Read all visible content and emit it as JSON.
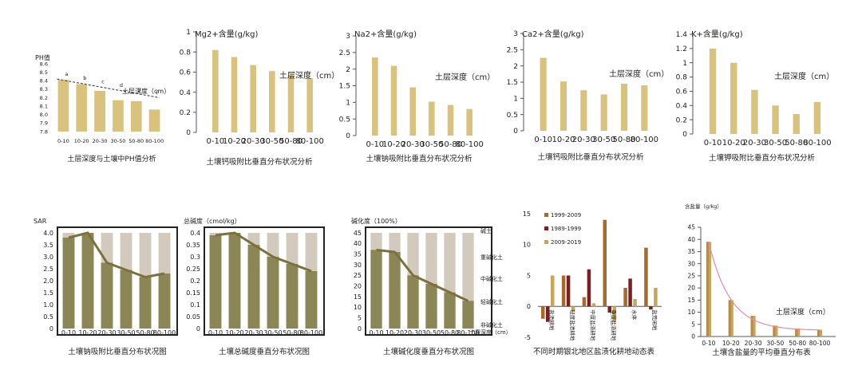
{
  "colors": {
    "bar": "#d9c27d",
    "olive": "#8b8656",
    "olive_line": "#7d7040",
    "bg_light": "#d2cbbd",
    "bg_dark": "#ac9f88",
    "brown": "#a66a2d",
    "darkred": "#7b1f22",
    "tan": "#c9a55a",
    "pink": "#e58aa8",
    "axis": "#555555",
    "frame": "#222222"
  },
  "charts": [
    {
      "id": "ph",
      "type": "bar",
      "title": "土层深度与土壤中PH值分析",
      "ylabel": "PH值",
      "annotation": "土层深度（cm）",
      "categories": [
        "0-10",
        "10-20",
        "20-30",
        "30-50",
        "50-80",
        "80-100"
      ],
      "values": [
        8.41,
        8.36,
        8.28,
        8.17,
        8.16,
        8.06
      ],
      "point_labels": [
        "a",
        "b",
        "c",
        "d",
        "e",
        "f"
      ],
      "ylim": [
        7.8,
        8.6
      ],
      "yticks": [
        "7.8",
        "7.9",
        "8.0",
        "8.1",
        "8.2",
        "8.3",
        "8.4",
        "8.5",
        "8.6"
      ]
    },
    {
      "id": "mg",
      "type": "bar",
      "title": "土壤钙吸附比垂直分布状况分析",
      "ylabel": "Mg2+含量(g/kg)",
      "annotation": "土层深度（cm）",
      "categories": [
        "0-10",
        "10-20",
        "20-30",
        "30-50",
        "50-80",
        "80-100"
      ],
      "values": [
        0.82,
        0.75,
        0.67,
        0.61,
        0.57,
        0.54
      ],
      "ylim": [
        0,
        1
      ],
      "yticks": [
        "0",
        "0.2",
        "0.4",
        "0.6",
        "0.8",
        "1"
      ]
    },
    {
      "id": "na",
      "type": "bar",
      "title": "土壤钠吸附比垂直分布状况分析",
      "ylabel": "Na2+含量(g/kg)",
      "annotation": "土层深度（cm）",
      "categories": [
        "0-10",
        "10-20",
        "20-30",
        "30-50",
        "50-80",
        "80-100"
      ],
      "values": [
        2.35,
        2.1,
        1.45,
        1.02,
        0.92,
        0.8
      ],
      "ylim": [
        0,
        3
      ],
      "yticks": [
        "0",
        "0.5",
        "1",
        "1.5",
        "2",
        "2.5",
        "3"
      ]
    },
    {
      "id": "ca",
      "type": "bar",
      "title": "土壤钙吸附比垂直分布状况分析",
      "ylabel": "Ca2+含量(g/kg)",
      "annotation": "土层深度（cm）",
      "categories": [
        "0-10",
        "10-20",
        "20-30",
        "30-50",
        "50-80",
        "80-100"
      ],
      "values": [
        2.25,
        1.52,
        1.25,
        1.12,
        1.45,
        1.4
      ],
      "ylim": [
        0,
        3
      ],
      "yticks": [
        "0",
        "0.5",
        "1",
        "1.5",
        "2",
        "2.5",
        "3"
      ]
    },
    {
      "id": "k",
      "type": "bar",
      "title": "土壤钾吸附比垂直分布状况分析",
      "ylabel": "K+含量(g/kg)",
      "annotation": "土层深度（cm）",
      "categories": [
        "0-10",
        "10-20",
        "20-30",
        "30-50",
        "50-80",
        "80-100"
      ],
      "values": [
        1.2,
        1.0,
        0.62,
        0.4,
        0.28,
        0.45
      ],
      "ylim": [
        0,
        1.4
      ],
      "yticks": [
        "0",
        "0.2",
        "0.4",
        "0.6",
        "0.8",
        "1",
        "1.2",
        "1.4"
      ]
    },
    {
      "id": "sar",
      "type": "bar+line",
      "title": "土壤钠吸附比垂直分布状况图",
      "ylabel": "SAR",
      "categories": [
        "0-10",
        "10-20",
        "20-30",
        "30-50",
        "50-80",
        "80-100"
      ],
      "values": [
        3.8,
        4.0,
        2.75,
        2.45,
        2.15,
        2.3
      ],
      "ylim": [
        0,
        4
      ],
      "yticks": [
        "0",
        "0.5",
        "1.0",
        "1.5",
        "2.0",
        "2.5",
        "3.0",
        "3.5",
        "4.0"
      ]
    },
    {
      "id": "alk",
      "type": "bar+line",
      "title": "土壤总碱度垂直分布状况图",
      "ylabel": "总碱度（cmol/kg）",
      "categories": [
        "0-10",
        "10-20",
        "20-30",
        "30-50",
        "50-80",
        "80-100"
      ],
      "values": [
        0.39,
        0.4,
        0.35,
        0.3,
        0.27,
        0.24
      ],
      "ylim": [
        0,
        0.4
      ],
      "yticks": [
        "0",
        "0.05",
        "0.1",
        "0.15",
        "0.2",
        "0.25",
        "0.3",
        "0.35",
        "0.4"
      ]
    },
    {
      "id": "esp",
      "type": "bar+line",
      "title": "土壤碱化度垂直分布状况图",
      "ylabel": "碱化度（100%）",
      "categories": [
        "0-10",
        "10-20",
        "20-30",
        "30-50",
        "50-80",
        "80-100"
      ],
      "values": [
        37,
        36,
        25,
        21,
        17,
        13
      ],
      "ylim": [
        0,
        45
      ],
      "yticks": [
        "0",
        "5",
        "10",
        "15",
        "20",
        "25",
        "30",
        "35",
        "40",
        "45"
      ],
      "band_labels": [
        "碱土",
        "重碱化土",
        "中碱化土",
        "轻碱化土",
        "非碱化土",
        "土层深度（cm）"
      ]
    },
    {
      "id": "landuse",
      "type": "bar",
      "title": "不同时期银北地区盐渍化耕地动态表",
      "categories": [
        "盐渍耕地",
        "轻度盐渍耕地",
        "中度盐渍耕地",
        "重度盐渍耕地",
        "水体",
        "盐荒闲地"
      ],
      "series": [
        {
          "name": "1999-2009",
          "values": [
            -2,
            5,
            1.5,
            14,
            3,
            9.5
          ]
        },
        {
          "name": "1989-1999",
          "values": [
            -2.5,
            5,
            6,
            -1,
            4.5,
            -0.5
          ]
        },
        {
          "name": "2009-2019",
          "values": [
            5,
            -0.8,
            0.5,
            -2.5,
            1.2,
            3
          ]
        }
      ],
      "ylim": [
        -5,
        15
      ],
      "yticks": [
        "-5",
        "0",
        "5",
        "10",
        "15"
      ]
    },
    {
      "id": "salt",
      "type": "bar+curve",
      "title": "土壤含盐量的平均垂直分布表",
      "ylabel": "含盐量（g/kg）",
      "annotation": "土层深度（cm）",
      "categories": [
        "0-10",
        "10-20",
        "20-30",
        "30-50",
        "50-80",
        "80-100"
      ],
      "values": [
        39,
        15,
        8.5,
        4.5,
        3.2,
        2.8
      ],
      "ylim": [
        0,
        45
      ],
      "yticks": [
        "0",
        "5",
        "10",
        "15",
        "20",
        "25",
        "30",
        "35",
        "40",
        "45"
      ]
    }
  ]
}
